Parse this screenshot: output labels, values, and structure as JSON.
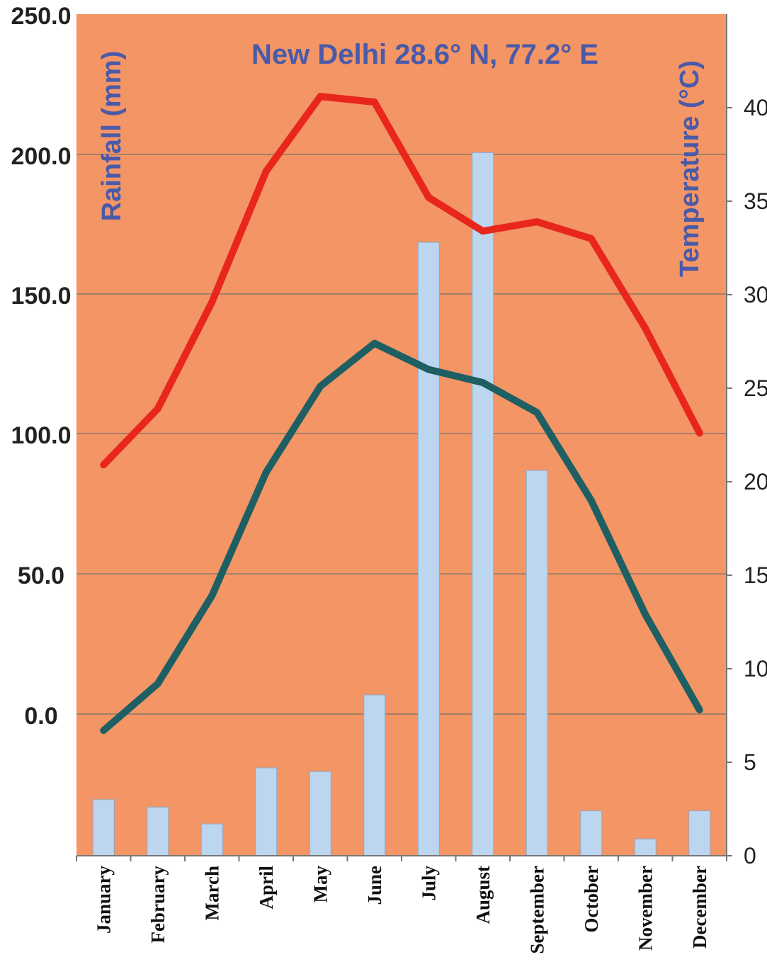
{
  "chart_data": {
    "type": "bar+line",
    "title": "New Delhi 28.6° N, 77.2° E",
    "categories": [
      "January",
      "February",
      "March",
      "April",
      "May",
      "June",
      "July",
      "August",
      "September",
      "October",
      "November",
      "December"
    ],
    "left_axis": {
      "label": "Rainfall (mm)",
      "tick_labels": [
        "250.0",
        "200.0",
        "150.0",
        "100.0",
        "50.0",
        "0.0"
      ]
    },
    "right_axis": {
      "label": "Temperature  (°C)",
      "ylim": [
        0,
        45
      ],
      "tick_labels": [
        "40",
        "35",
        "30",
        "25",
        "20",
        "15",
        "10",
        "5",
        "0"
      ],
      "tick_values": [
        40,
        35,
        30,
        25,
        20,
        15,
        10,
        5,
        0
      ]
    },
    "rainfall_bars": {
      "values": [
        3.0,
        2.6,
        1.7,
        4.7,
        4.5,
        8.6,
        32.8,
        37.6,
        20.6,
        2.4,
        0.9,
        2.4
      ]
    },
    "series": [
      {
        "color": "#e8261c",
        "values": [
          20.9,
          23.9,
          29.6,
          36.6,
          40.6,
          40.3,
          35.2,
          33.4,
          33.9,
          33.0,
          28.2,
          22.6
        ]
      },
      {
        "color": "#1d5f62",
        "values": [
          6.7,
          9.2,
          13.9,
          20.5,
          25.1,
          27.4,
          26.0,
          25.3,
          23.7,
          19.0,
          12.9,
          7.8
        ]
      }
    ],
    "colors": {
      "plot_background": "#f39565",
      "bar_fill": "#bdd6f0",
      "axis_title": "#4a5aa8",
      "gridline": "#8a7a6a"
    },
    "grid": true
  }
}
